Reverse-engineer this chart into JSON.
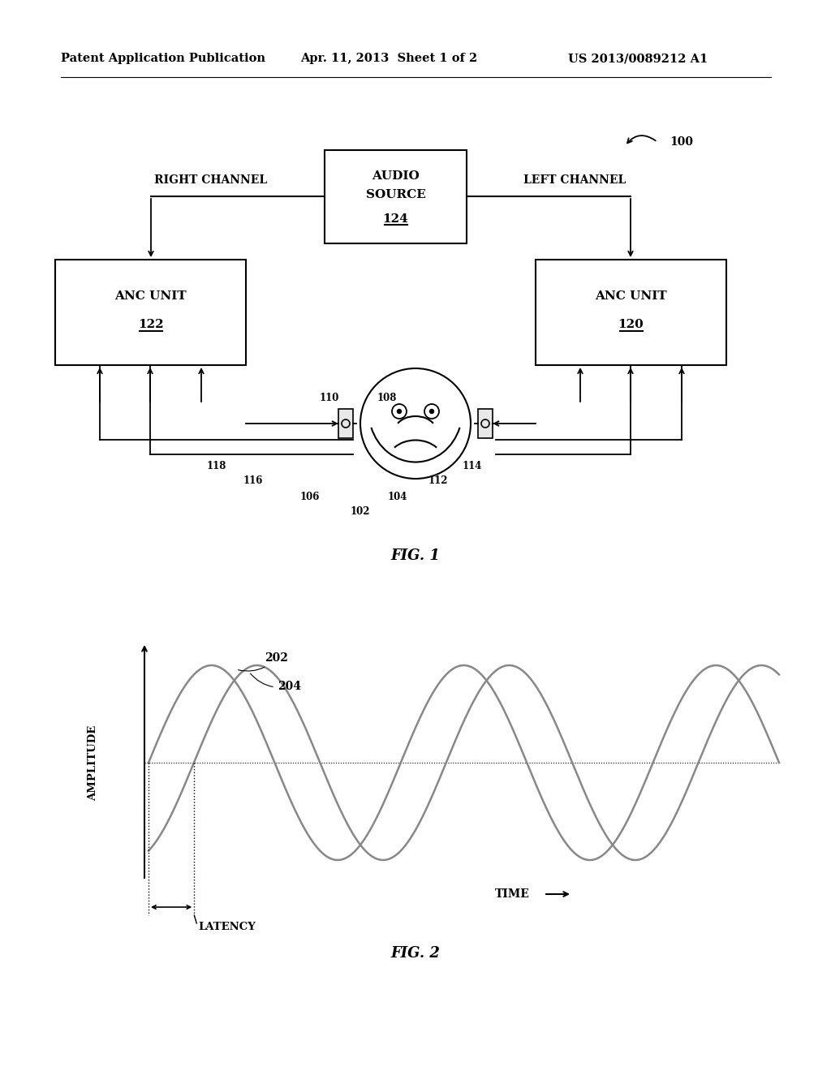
{
  "background_color": "#ffffff",
  "header_text": "Patent Application Publication",
  "header_date": "Apr. 11, 2013  Sheet 1 of 2",
  "header_patent": "US 2013/0089212 A1",
  "fig1_label": "FIG. 1",
  "fig2_label": "FIG. 2",
  "label_100": "100",
  "label_102": "102",
  "label_104": "104",
  "label_106": "106",
  "label_108": "108",
  "label_110": "110",
  "label_112": "112",
  "label_114": "114",
  "label_116": "116",
  "label_118": "118",
  "label_120": "120",
  "label_122": "122",
  "label_124": "124",
  "label_202": "202",
  "label_204": "204",
  "text_audio_source_line1": "AUDIO",
  "text_audio_source_line2": "SOURCE",
  "text_anc_unit": "ANC UNIT",
  "text_right_channel": "RIGHT CHANNEL",
  "text_left_channel": "LEFT CHANNEL",
  "text_amplitude": "AMPLITUDE",
  "text_time": "TIME",
  "text_latency": "LATENCY",
  "wave_color": "#888888",
  "line_color": "#000000"
}
